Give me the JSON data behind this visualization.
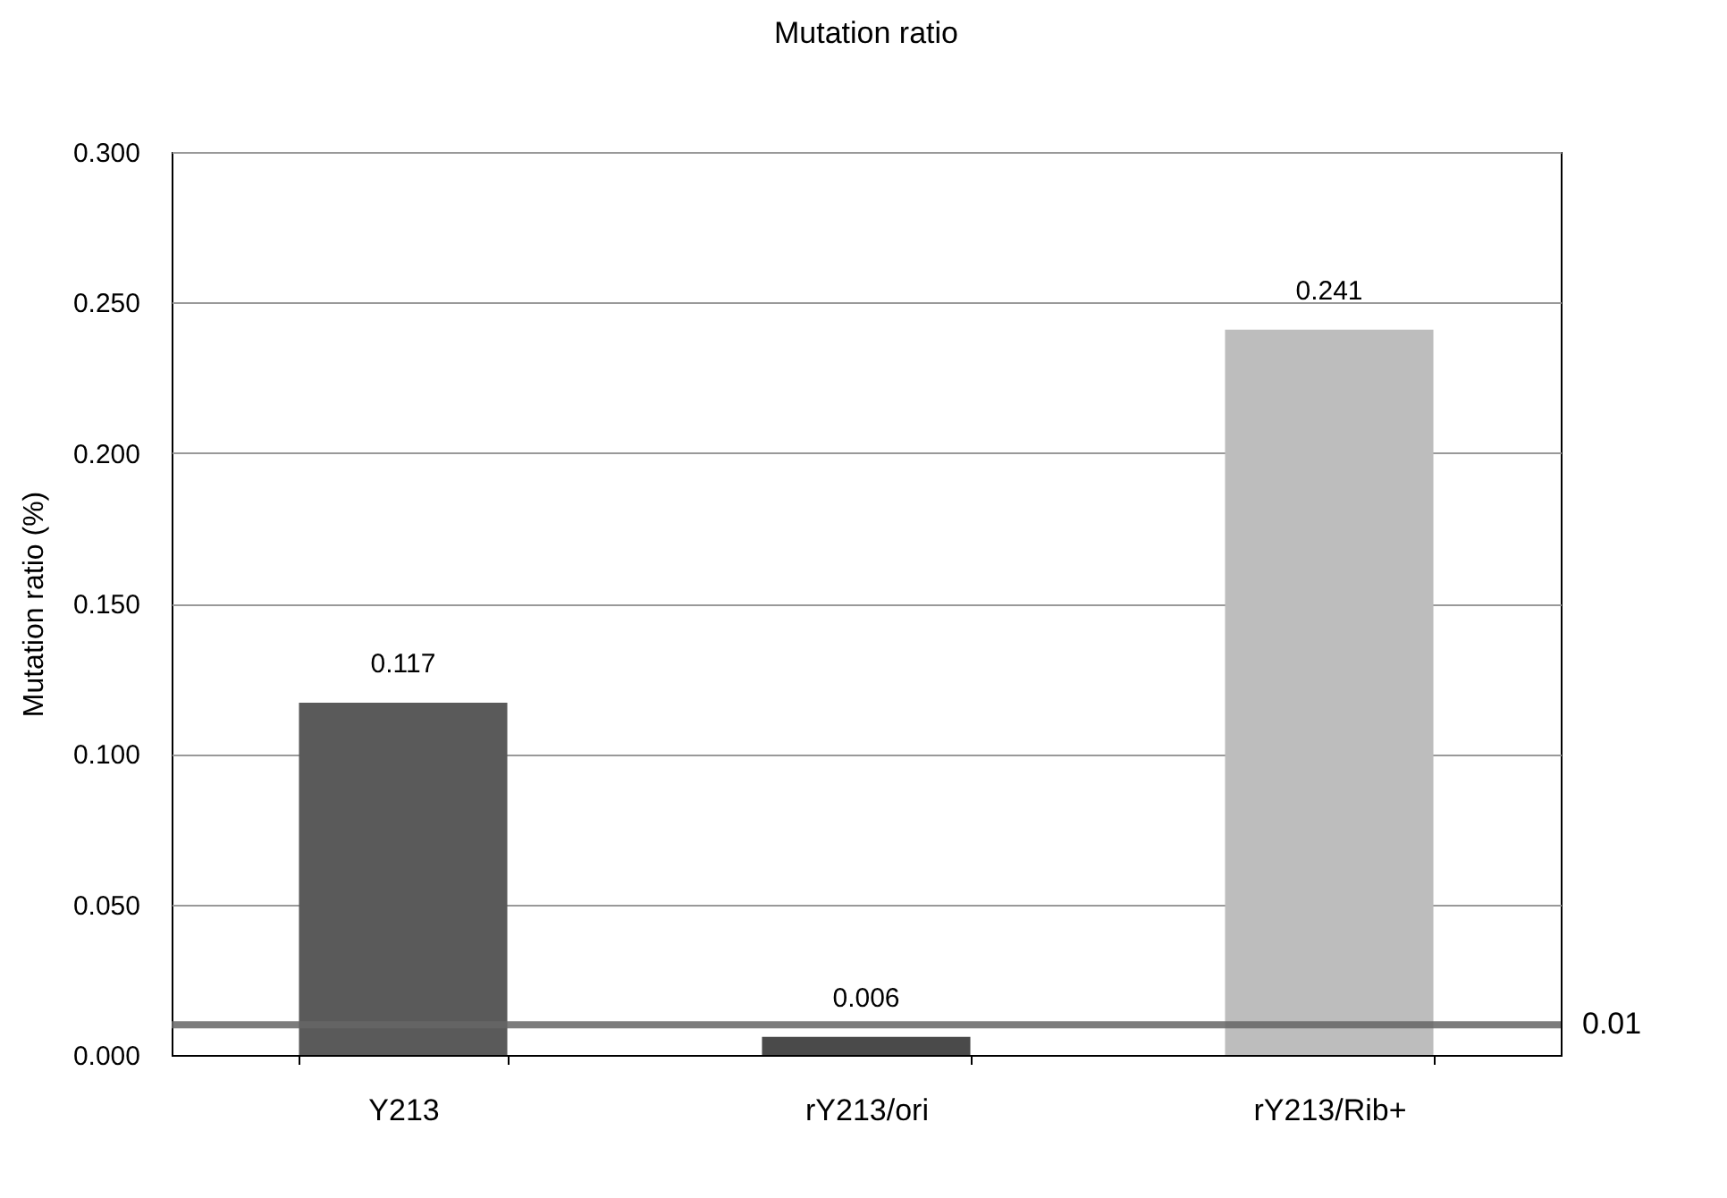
{
  "chart_data": {
    "type": "bar",
    "title": "Mutation ratio",
    "ylabel": "Mutation ratio (%)",
    "categories": [
      "Y213",
      "rY213/ori",
      "rY213/Rib+"
    ],
    "values": [
      0.117,
      0.006,
      0.241
    ],
    "colors": [
      "#5a5a5a",
      "#4a4a4a",
      "#bdbdbd"
    ],
    "ylim": [
      0,
      0.3
    ],
    "yticks": [
      {
        "value": 0,
        "label": "0.000"
      },
      {
        "value": 0.05,
        "label": "0.050"
      },
      {
        "value": 0.1,
        "label": "0.100"
      },
      {
        "value": 0.15,
        "label": "0.150"
      },
      {
        "value": 0.2,
        "label": "0.200"
      },
      {
        "value": 0.25,
        "label": "0.250"
      },
      {
        "value": 0.3,
        "label": "0.300"
      }
    ],
    "grid": "y",
    "data_labels": true,
    "ref_lines": [
      {
        "axis": "y",
        "value": 0.01,
        "label": "0.01",
        "color": "#666666"
      }
    ]
  }
}
